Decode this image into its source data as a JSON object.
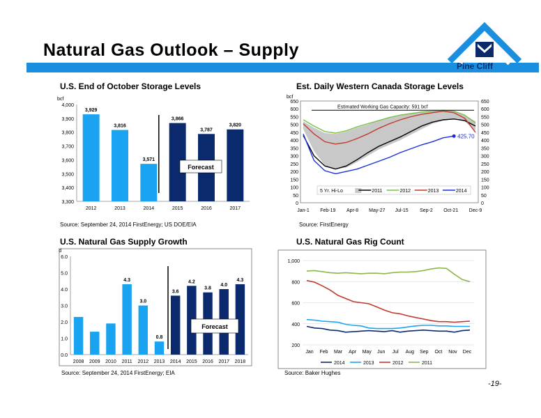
{
  "page": {
    "title": "Natural Gas Outlook – Supply",
    "logo_text": "Pine Cliff",
    "page_number": "-19-",
    "accent_color": "#1a8fe0"
  },
  "charts": {
    "storage": {
      "title": "U.S. End of October Storage Levels",
      "source": "Source:  September 24, 2014 FirstEnergy; US DOE/EIA"
    },
    "canada": {
      "title": "Est. Daily Western Canada Storage Levels",
      "source": "Source: FirstEnergy"
    },
    "supply": {
      "title": "U.S. Natural Gas Supply Growth",
      "source": "Source: September 24, 2014 FirstEnergy; EIA"
    },
    "rigs": {
      "title": "U.S. Natural Gas Rig Count",
      "source": "Source: Baker Hughes"
    }
  },
  "chart_data": [
    {
      "id": "storage",
      "type": "bar",
      "ylabel": "bcf",
      "categories": [
        "2012",
        "2013",
        "2014",
        "2015",
        "2016",
        "2017"
      ],
      "values": [
        3929,
        3816,
        3571,
        3866,
        3787,
        3820
      ],
      "value_labels": [
        "3,929",
        "3,816",
        "3,571",
        "3,866",
        "3,787",
        "3,820"
      ],
      "ylim": [
        3300,
        4000
      ],
      "yticks": [
        "3,300",
        "3,400",
        "3,500",
        "3,600",
        "3,700",
        "3,800",
        "3,900",
        "4,000"
      ],
      "annotation": "Forecast",
      "colors": {
        "actual": "#1aa3f0",
        "forecast": "#0b2a6e"
      }
    },
    {
      "id": "canada",
      "type": "line",
      "ylabel": "bcf",
      "ylim": [
        0,
        650
      ],
      "yticks": [
        "0",
        "50",
        "100",
        "150",
        "200",
        "250",
        "300",
        "350",
        "400",
        "450",
        "500",
        "550",
        "600",
        "650"
      ],
      "xticks": [
        "Jan-1",
        "Feb-19",
        "Apr-8",
        "May-27",
        "Jul-15",
        "Sep-2",
        "Oct-21",
        "Dec-9"
      ],
      "capacity_label": "Estimated Working Gas Capacity:  591 bcf",
      "capacity": 591,
      "end_label": "425.70",
      "legend": [
        "5 Yr. Hi-Lo",
        "2011",
        "2012",
        "2013",
        "2014"
      ],
      "colors": {
        "band": "#c8c8c8",
        "2011": "#000000",
        "2012": "#7cc04a",
        "2013": "#c0392b",
        "2014": "#1a2ee0"
      },
      "series": [
        {
          "name": "5 Yr. Hi-Lo high",
          "values": [
            520,
            480,
            445,
            440,
            455,
            480,
            500,
            525,
            545,
            560,
            570,
            580,
            585,
            588,
            582,
            560,
            520
          ]
        },
        {
          "name": "5 Yr. Hi-Lo low",
          "values": [
            470,
            330,
            240,
            215,
            225,
            260,
            300,
            340,
            370,
            400,
            435,
            470,
            505,
            525,
            535,
            520,
            460
          ]
        },
        {
          "name": "2011",
          "values": [
            430,
            300,
            235,
            215,
            235,
            275,
            320,
            360,
            390,
            420,
            455,
            490,
            515,
            530,
            535,
            525,
            490
          ]
        },
        {
          "name": "2012",
          "values": [
            530,
            490,
            455,
            445,
            460,
            485,
            505,
            525,
            545,
            560,
            570,
            580,
            585,
            590,
            585,
            560,
            510
          ]
        },
        {
          "name": "2013",
          "values": [
            505,
            440,
            390,
            375,
            385,
            410,
            440,
            475,
            505,
            530,
            550,
            565,
            575,
            585,
            575,
            540,
            450
          ]
        },
        {
          "name": "2014",
          "values": [
            440,
            270,
            205,
            185,
            200,
            215,
            240,
            265,
            290,
            320,
            345,
            370,
            390,
            415,
            426
          ]
        }
      ]
    },
    {
      "id": "supply",
      "type": "bar",
      "ylabel": "bcf/d",
      "categories": [
        "2008",
        "2009",
        "2010",
        "2011",
        "2012",
        "2013",
        "2014",
        "2015",
        "2016",
        "2017",
        "2018"
      ],
      "values": [
        2.3,
        1.4,
        1.9,
        4.3,
        3.0,
        0.8,
        3.6,
        4.2,
        3.8,
        4.0,
        4.3
      ],
      "value_labels": [
        "",
        "",
        "",
        "4.3",
        "3.0",
        "0.8",
        "3.6",
        "4.2",
        "3.8",
        "4.0",
        "4.3"
      ],
      "ylim": [
        0,
        6
      ],
      "yticks": [
        "0.0",
        "1.0",
        "2.0",
        "3.0",
        "4.0",
        "5.0",
        "6.0"
      ],
      "annotation": "Forecast",
      "colors": {
        "actual": "#1aa3f0",
        "forecast": "#0b2a6e"
      }
    },
    {
      "id": "rigs",
      "type": "line",
      "ylim": [
        200,
        1000
      ],
      "yticks": [
        "200",
        "400",
        "600",
        "800",
        "1,000"
      ],
      "xticks": [
        "Jan",
        "Feb",
        "Mar",
        "Apr",
        "May",
        "Jun",
        "Jul",
        "Aug",
        "Sep",
        "Oct",
        "Nov",
        "Dec"
      ],
      "colors": {
        "2014": "#0b2a6e",
        "2013": "#1aa3f0",
        "2012": "#c0392b",
        "2011": "#8ab84a"
      },
      "series": [
        {
          "name": "2014",
          "values": [
            375,
            360,
            355,
            340,
            335,
            320,
            325,
            330,
            335,
            330,
            325,
            335,
            320,
            330,
            335,
            340,
            335,
            330,
            330,
            320,
            335,
            340
          ]
        },
        {
          "name": "2013",
          "values": [
            440,
            435,
            425,
            420,
            415,
            395,
            385,
            380,
            360,
            355,
            355,
            355,
            360,
            370,
            380,
            385,
            385,
            380,
            380,
            375,
            375,
            375
          ]
        },
        {
          "name": "2012",
          "values": [
            810,
            795,
            760,
            720,
            670,
            640,
            610,
            600,
            590,
            560,
            530,
            505,
            495,
            475,
            460,
            445,
            430,
            420,
            420,
            415,
            420,
            425
          ]
        },
        {
          "name": "2011",
          "values": [
            900,
            905,
            895,
            885,
            880,
            885,
            880,
            875,
            880,
            880,
            875,
            885,
            890,
            890,
            895,
            905,
            920,
            930,
            925,
            870,
            820,
            800
          ]
        }
      ]
    }
  ]
}
